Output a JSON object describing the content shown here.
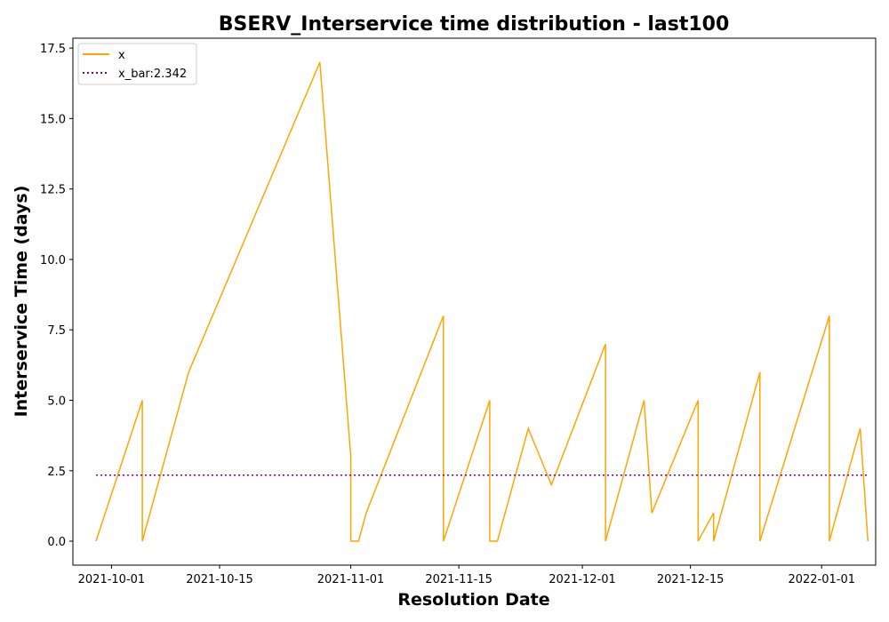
{
  "chart_data": {
    "type": "line",
    "title": "BSERV_Interservice time distribution - last100",
    "xlabel": "Resolution Date",
    "ylabel": "Interservice Time (days)",
    "xlim": [
      "2021-09-26",
      "2022-01-08"
    ],
    "ylim": [
      -0.85,
      17.85
    ],
    "x_ticks": [
      "2021-10-01",
      "2021-10-15",
      "2021-11-01",
      "2021-11-15",
      "2021-12-01",
      "2021-12-15",
      "2022-01-01"
    ],
    "y_ticks": [
      "0.0",
      "2.5",
      "5.0",
      "7.5",
      "10.0",
      "12.5",
      "15.0",
      "17.5"
    ],
    "grid": false,
    "legend_position": "upper-left",
    "series": [
      {
        "name": "x",
        "color": "#ffa500",
        "style": "solid",
        "x": [
          "2021-09-29",
          "2021-10-05",
          "2021-10-05",
          "2021-10-11",
          "2021-10-28",
          "2021-11-01",
          "2021-11-01",
          "2021-11-02",
          "2021-11-03",
          "2021-11-13",
          "2021-11-13",
          "2021-11-19",
          "2021-11-19",
          "2021-11-20",
          "2021-11-24",
          "2021-11-27",
          "2021-12-04",
          "2021-12-04",
          "2021-12-09",
          "2021-12-10",
          "2021-12-16",
          "2021-12-16",
          "2021-12-18",
          "2021-12-18",
          "2021-12-24",
          "2021-12-24",
          "2022-01-02",
          "2022-01-02",
          "2022-01-06",
          "2022-01-07"
        ],
        "values": [
          0,
          5,
          0,
          6,
          17,
          3,
          0,
          0,
          1,
          8,
          0,
          5,
          0,
          0,
          4,
          2,
          7,
          0,
          5,
          1,
          5,
          0,
          1,
          0,
          6,
          0,
          8,
          0,
          4,
          0
        ]
      },
      {
        "name": "x_bar:2.342",
        "color": "#800080",
        "style": "dotted",
        "x": [
          "2021-09-29",
          "2022-01-07"
        ],
        "values": [
          2.342,
          2.342
        ]
      }
    ]
  }
}
